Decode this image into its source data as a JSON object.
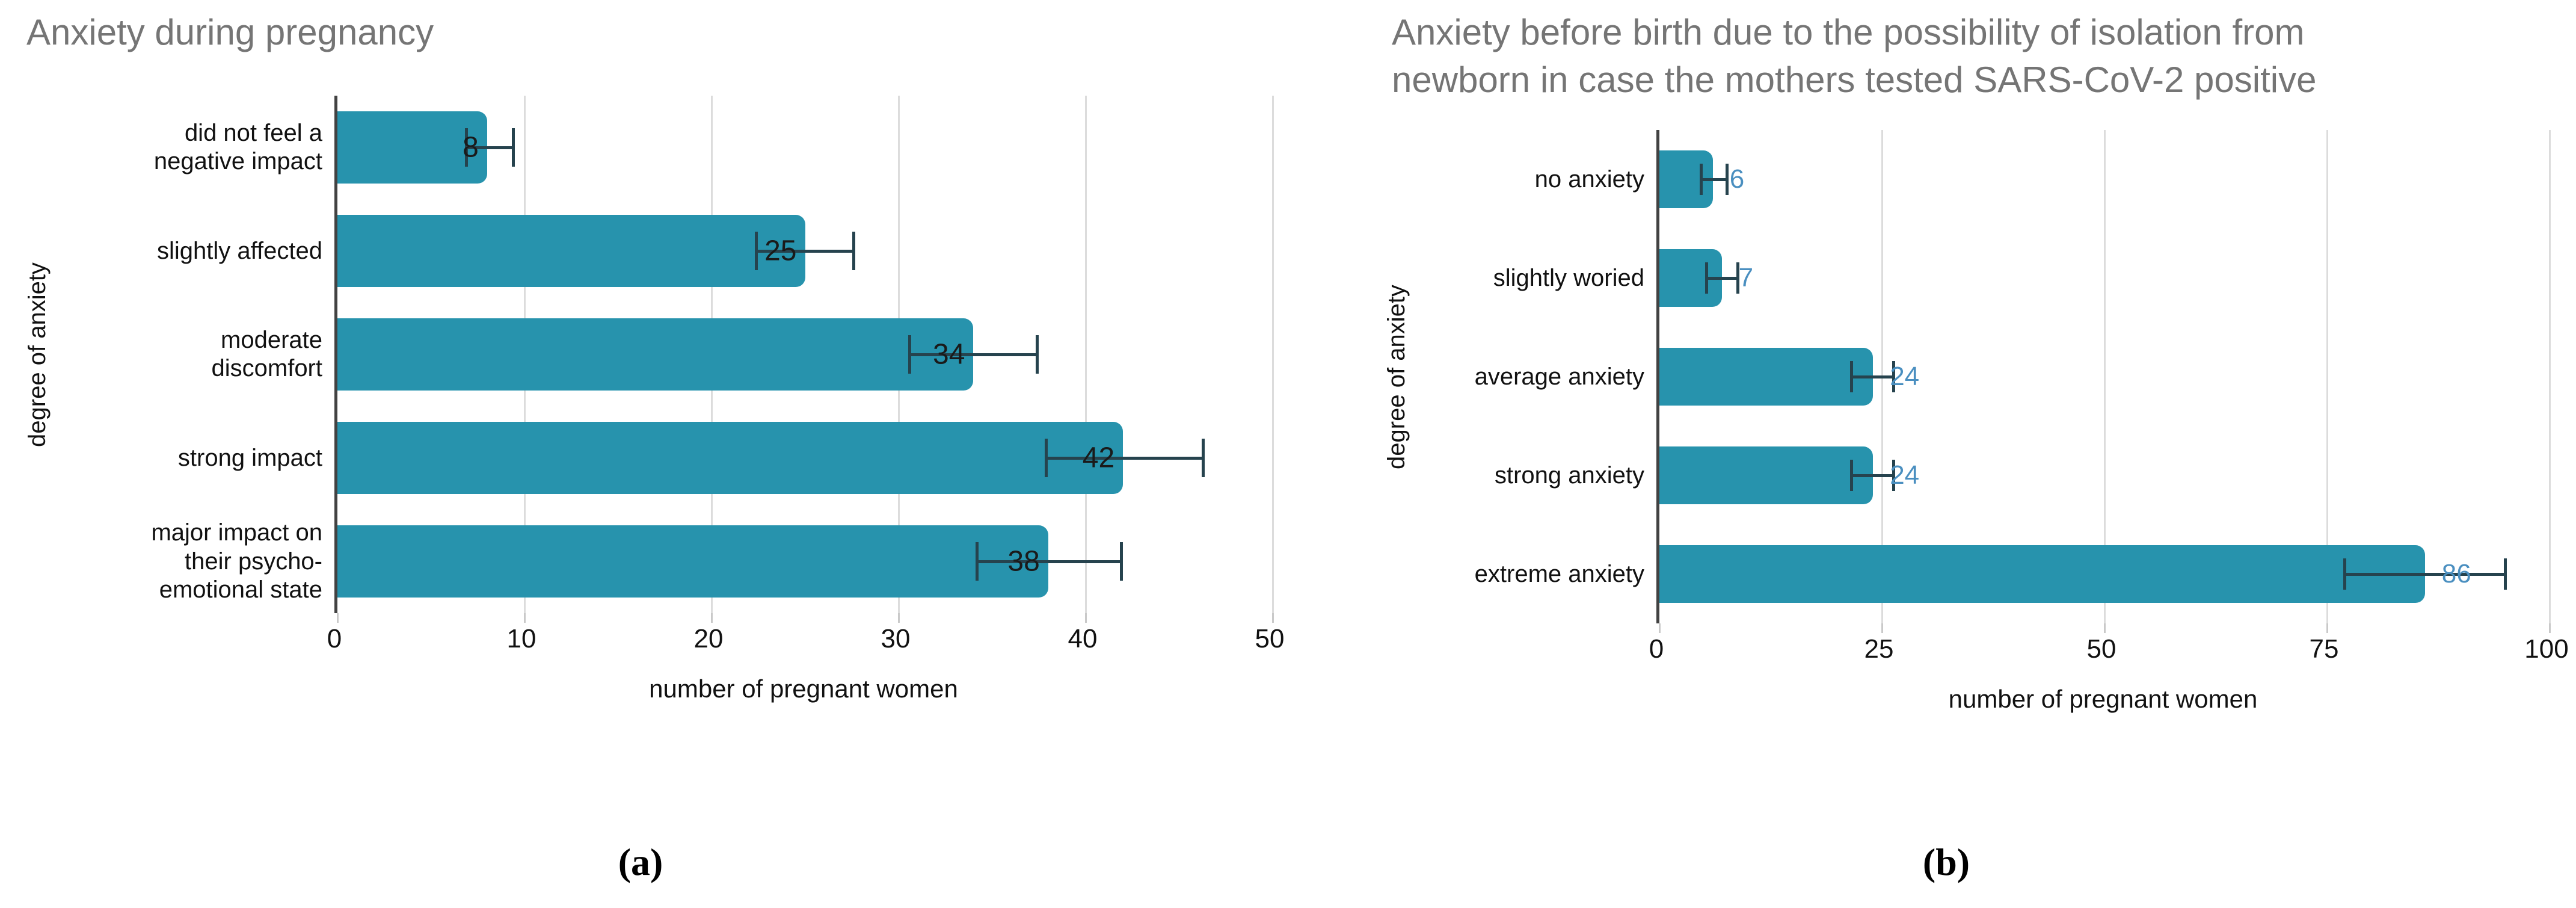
{
  "captions": {
    "a": "(a)",
    "b": "(b)"
  },
  "colors": {
    "bar": "#2793ad",
    "error_bar": "#26434e",
    "grid": "#dcdcdc",
    "axis": "#424242",
    "title_gray": "#757575",
    "text": "#111111",
    "value_label_a": "#1a1a1a",
    "value_label_b": "#4a8fc0"
  },
  "chart_data": [
    {
      "id": "a",
      "type": "bar",
      "orientation": "horizontal",
      "title": "Anxiety during pregnancy",
      "categories": [
        "did not feel a negative impact",
        "slightly affected",
        "moderate discomfort",
        "strong impact",
        "major impact on their psycho-emotional state"
      ],
      "categories_lines": [
        [
          "did not feel a",
          "negative impact"
        ],
        [
          "slightly affected"
        ],
        [
          "moderate",
          "discomfort"
        ],
        [
          "strong impact"
        ],
        [
          "major impact on",
          "their psycho-",
          "emotional state"
        ]
      ],
      "values": [
        8,
        25,
        34,
        42,
        38
      ],
      "error_low": [
        6.9,
        22.4,
        30.6,
        37.9,
        34.2
      ],
      "error_high": [
        9.4,
        27.6,
        37.4,
        46.3,
        41.9
      ],
      "xlabel": "number of pregnant women",
      "ylabel": "degree of anxiety",
      "xlim": [
        0,
        50
      ],
      "xticks": [
        0,
        10,
        20,
        30,
        40,
        50
      ],
      "grid": true,
      "legend": "none",
      "value_label_position": "inside-end",
      "value_color": "#1a1a1a"
    },
    {
      "id": "b",
      "type": "bar",
      "orientation": "horizontal",
      "title": "Anxiety before birth due to the possibility of isolation from newborn in case the mothers tested SARS-CoV-2 positive",
      "title_lines": [
        "Anxiety before birth due to the possibility of isolation from",
        "newborn in case the mothers tested SARS-CoV-2 positive"
      ],
      "categories": [
        "no anxiety",
        "slightly woried",
        "average anxiety",
        "strong anxiety",
        "extreme anxiety"
      ],
      "categories_lines": [
        [
          "no anxiety"
        ],
        [
          "slightly woried"
        ],
        [
          "average anxiety"
        ],
        [
          "strong anxiety"
        ],
        [
          "extreme anxiety"
        ]
      ],
      "values": [
        6,
        7,
        24,
        24,
        86
      ],
      "error_low": [
        4.7,
        5.3,
        21.6,
        21.6,
        77
      ],
      "error_high": [
        7.6,
        8.8,
        26.3,
        26.3,
        95
      ],
      "xlabel": "number of pregnant women",
      "ylabel": "degree of anxiety",
      "xlim": [
        0,
        100
      ],
      "xticks": [
        0,
        25,
        50,
        75,
        100
      ],
      "grid": true,
      "legend": "none",
      "value_label_position": "outside-end",
      "value_color": "#4a8fc0"
    }
  ]
}
